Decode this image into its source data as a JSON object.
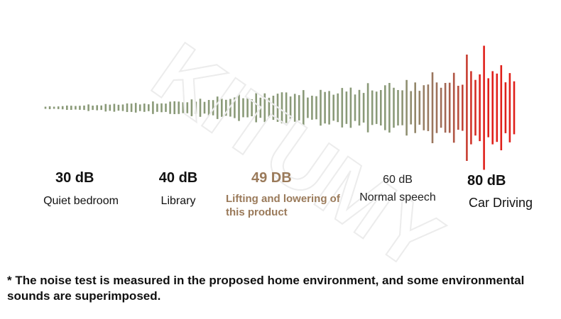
{
  "watermark": "KITUMY",
  "levels": [
    {
      "db": "30 dB",
      "description": "Quiet bedroom",
      "color": "#111111"
    },
    {
      "db": "40 dB",
      "description": "Library",
      "color": "#111111"
    },
    {
      "db": "49 DB",
      "description": "Lifting and lowering of this product",
      "color": "#9a7a5a"
    },
    {
      "db": "60 dB",
      "description": "Normal speech",
      "color": "#222222"
    },
    {
      "db": "80 dB",
      "description": "Car Driving",
      "color": "#111111"
    }
  ],
  "footnote": "* The noise test is measured in the proposed home environment, and some environmental sounds are superimposed.",
  "waveform_colors": {
    "quiet": "#8a9a78",
    "mid": "#a06a55",
    "loud": "#e0201a"
  }
}
